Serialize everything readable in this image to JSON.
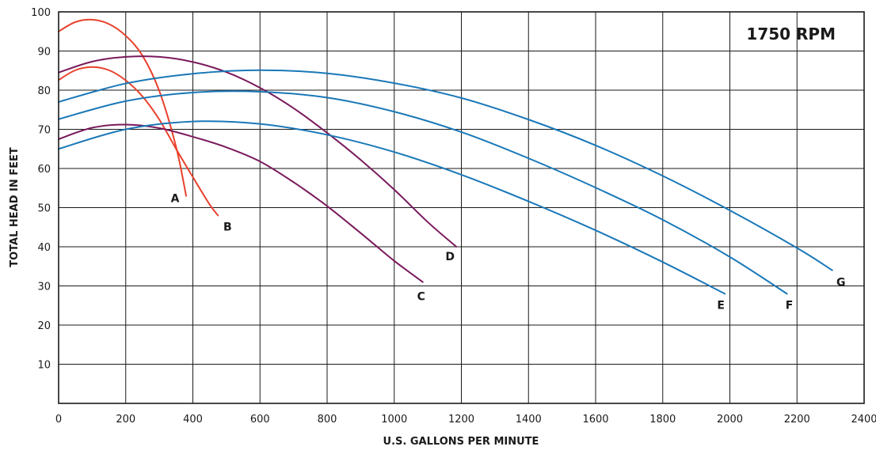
{
  "chart_data": {
    "type": "line",
    "title": "",
    "xlabel": "U.S. GALLONS PER MINUTE",
    "ylabel": "TOTAL HEAD IN FEET",
    "xlim": [
      0,
      2400
    ],
    "ylim": [
      0,
      100
    ],
    "xticks": [
      0,
      200,
      400,
      600,
      800,
      1000,
      1200,
      1400,
      1600,
      1800,
      2000,
      2200,
      2400
    ],
    "yticks": [
      10,
      20,
      30,
      40,
      50,
      60,
      70,
      80,
      90,
      100
    ],
    "x_tick_labels": [
      "0",
      "200",
      "400",
      "600",
      "800",
      "1000",
      "1200",
      "1400",
      "1600",
      "1800",
      "2000",
      "2200",
      "2400"
    ],
    "y_tick_labels": [
      "10",
      "20",
      "30",
      "40",
      "50",
      "60",
      "70",
      "80",
      "90",
      "100"
    ],
    "grid": true,
    "annotation": "1750 RPM",
    "series": [
      {
        "name": "A",
        "color": "#e8412c",
        "x": [
          0,
          50,
          100,
          150,
          200,
          250,
          300,
          350,
          380
        ],
        "y": [
          95,
          97.4,
          98,
          96.9,
          93.9,
          88.8,
          79.8,
          65.5,
          53
        ]
      },
      {
        "name": "B",
        "color": "#e8412c",
        "x": [
          0,
          50,
          100,
          150,
          200,
          250,
          300,
          350,
          400,
          450,
          475
        ],
        "y": [
          82.6,
          85.1,
          85.9,
          85.1,
          82.5,
          78.4,
          72.5,
          65,
          57.8,
          50.8,
          48
        ]
      },
      {
        "name": "C",
        "color": "#7a1a5c",
        "x": [
          0,
          100,
          200,
          300,
          400,
          500,
          600,
          700,
          800,
          900,
          1000,
          1085
        ],
        "y": [
          67.5,
          70.4,
          71.2,
          70.3,
          68.1,
          65.4,
          61.8,
          56.5,
          50.4,
          43.5,
          36.4,
          31
        ]
      },
      {
        "name": "D",
        "color": "#7a1a5c",
        "x": [
          0,
          100,
          200,
          300,
          400,
          500,
          600,
          700,
          800,
          900,
          1000,
          1100,
          1185
        ],
        "y": [
          84.5,
          87.3,
          88.5,
          88.5,
          87.2,
          84.6,
          80.6,
          75.4,
          69.1,
          62.2,
          54.6,
          46.3,
          40
        ]
      },
      {
        "name": "E",
        "color": "#1a78b8",
        "x": [
          0,
          200,
          400,
          600,
          800,
          1000,
          1200,
          1400,
          1600,
          1800,
          1985
        ],
        "y": [
          65,
          70,
          72,
          71.4,
          68.6,
          64.2,
          58.4,
          51.6,
          44.2,
          36.1,
          28
        ]
      },
      {
        "name": "F",
        "color": "#1a78b8",
        "x": [
          0,
          200,
          400,
          600,
          800,
          1000,
          1200,
          1400,
          1600,
          1800,
          2000,
          2170
        ],
        "y": [
          72.6,
          77.2,
          79.4,
          79.6,
          78.1,
          74.5,
          69.3,
          62.6,
          55.1,
          46.9,
          37.4,
          28
        ]
      },
      {
        "name": "G",
        "color": "#1a78b8",
        "x": [
          0,
          200,
          400,
          600,
          800,
          1000,
          1200,
          1400,
          1600,
          1800,
          2000,
          2200,
          2305
        ],
        "y": [
          77,
          81.7,
          84.2,
          85.1,
          84.3,
          81.8,
          78,
          72.5,
          65.9,
          58.1,
          49.3,
          39.7,
          34
        ]
      }
    ]
  }
}
